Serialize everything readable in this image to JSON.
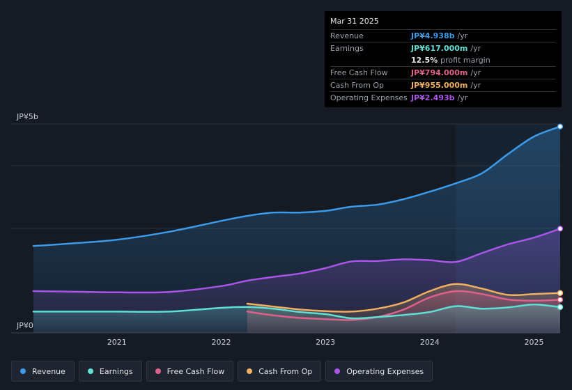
{
  "tooltip": {
    "date": "Mar 31 2025",
    "rows": [
      {
        "label": "Revenue",
        "value": "JP¥4.938b",
        "unit": "/yr",
        "color": "#3b9bea"
      },
      {
        "label": "Earnings",
        "value": "JP¥617.000m",
        "unit": "/yr",
        "color": "#5ee0d6"
      },
      {
        "label": "",
        "value": "12.5%",
        "unit": "profit margin",
        "color": "#e6e6e6"
      },
      {
        "label": "Free Cash Flow",
        "value": "JP¥794.000m",
        "unit": "/yr",
        "color": "#e0608c"
      },
      {
        "label": "Cash From Op",
        "value": "JP¥955.000m",
        "unit": "/yr",
        "color": "#f0b060"
      },
      {
        "label": "Operating Expenses",
        "value": "JP¥2.493b",
        "unit": "/yr",
        "color": "#a855e8"
      }
    ]
  },
  "chart_data": {
    "type": "area",
    "title": "",
    "xlabel": "",
    "ylabel": "",
    "ylim": [
      0,
      5000
    ],
    "y_unit": "JP¥ millions",
    "y_tick_labels": [
      "JP¥0",
      "JP¥5b"
    ],
    "x_tick_labels": [
      "2021",
      "2022",
      "2023",
      "2024",
      "2025"
    ],
    "x_range": [
      2020.2,
      2025.25
    ],
    "highlight_from": 2024.25,
    "grid": true,
    "legend_position": "bottom",
    "series": [
      {
        "name": "Revenue",
        "color": "#3b9bea",
        "x": [
          2020.2,
          2020.5,
          2021.0,
          2021.5,
          2022.0,
          2022.25,
          2022.5,
          2022.75,
          2023.0,
          2023.25,
          2023.5,
          2023.75,
          2024.0,
          2024.25,
          2024.5,
          2024.75,
          2025.0,
          2025.25
        ],
        "y": [
          2080,
          2130,
          2230,
          2420,
          2680,
          2800,
          2880,
          2880,
          2920,
          3020,
          3070,
          3200,
          3380,
          3580,
          3820,
          4280,
          4700,
          4938
        ]
      },
      {
        "name": "Earnings",
        "color": "#5ee0d6",
        "x": [
          2020.2,
          2020.5,
          2021.0,
          2021.5,
          2022.0,
          2022.25,
          2022.5,
          2022.75,
          2023.0,
          2023.25,
          2023.5,
          2023.75,
          2024.0,
          2024.25,
          2024.5,
          2024.75,
          2025.0,
          2025.25
        ],
        "y": [
          510,
          510,
          510,
          510,
          600,
          620,
          580,
          500,
          450,
          350,
          380,
          430,
          500,
          640,
          580,
          610,
          680,
          617
        ]
      },
      {
        "name": "Free Cash Flow",
        "color": "#e0608c",
        "x": [
          2022.25,
          2022.5,
          2022.75,
          2023.0,
          2023.25,
          2023.5,
          2023.75,
          2024.0,
          2024.25,
          2024.5,
          2024.75,
          2025.0,
          2025.25
        ],
        "y": [
          510,
          420,
          360,
          330,
          310,
          380,
          560,
          850,
          1000,
          930,
          800,
          770,
          794
        ]
      },
      {
        "name": "Cash From Op",
        "color": "#f0b060",
        "x": [
          2022.25,
          2022.5,
          2022.75,
          2023.0,
          2023.25,
          2023.5,
          2023.75,
          2024.0,
          2024.25,
          2024.5,
          2024.75,
          2025.0,
          2025.25
        ],
        "y": [
          700,
          630,
          560,
          520,
          510,
          580,
          730,
          1000,
          1170,
          1060,
          910,
          930,
          955
        ]
      },
      {
        "name": "Operating Expenses",
        "color": "#a855e8",
        "x": [
          2020.2,
          2020.5,
          2021.0,
          2021.5,
          2022.0,
          2022.25,
          2022.5,
          2022.75,
          2023.0,
          2023.25,
          2023.5,
          2023.75,
          2024.0,
          2024.25,
          2024.5,
          2024.75,
          2025.0,
          2025.25
        ],
        "y": [
          1000,
          990,
          970,
          980,
          1120,
          1250,
          1340,
          1420,
          1550,
          1710,
          1720,
          1760,
          1740,
          1700,
          1910,
          2120,
          2280,
          2493
        ]
      }
    ]
  },
  "legend": [
    {
      "label": "Revenue",
      "color": "#3b9bea"
    },
    {
      "label": "Earnings",
      "color": "#5ee0d6"
    },
    {
      "label": "Free Cash Flow",
      "color": "#e0608c"
    },
    {
      "label": "Cash From Op",
      "color": "#f0b060"
    },
    {
      "label": "Operating Expenses",
      "color": "#a855e8"
    }
  ]
}
